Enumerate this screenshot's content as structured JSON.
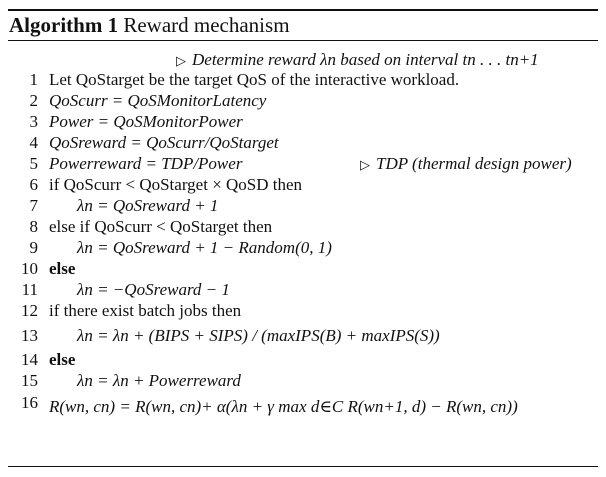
{
  "algorithm": {
    "label": "Algorithm 1",
    "title": "Reward mechanism",
    "header_comment": "Determine reward λn based on interval tn . . . tn+1",
    "lines": [
      {
        "num": "1",
        "text": "Let QoStarget be the target QoS of the interactive workload."
      },
      {
        "num": "2",
        "text": "QoScurr = QoSMonitorLatency"
      },
      {
        "num": "3",
        "text": "Power = QoSMonitorPower"
      },
      {
        "num": "4",
        "text": "QoSreward = QoScurr/QoStarget"
      },
      {
        "num": "5",
        "text": "Powerreward = TDP/Power",
        "comment": "TDP (thermal design power)"
      },
      {
        "num": "6",
        "text": "if QoScurr < QoStarget × QoSD then"
      },
      {
        "num": "7",
        "text": "λn = QoSreward + 1"
      },
      {
        "num": "8",
        "text": "else if QoScurr < QoStarget then"
      },
      {
        "num": "9",
        "text": "λn = QoSreward + 1 − Random(0, 1)"
      },
      {
        "num": "10",
        "text": "else"
      },
      {
        "num": "11",
        "text": "λn = −QoSreward − 1"
      },
      {
        "num": "12",
        "text": "if there exist batch jobs then"
      },
      {
        "num": "13",
        "text": "λn = λn + (BIPS + SIPS) / (maxIPS(B) + maxIPS(S))"
      },
      {
        "num": "14",
        "text": "else"
      },
      {
        "num": "15",
        "text": "λn = λn + Powerreward"
      },
      {
        "num": "16",
        "text": "R(wn, cn) = R(wn, cn)+ α(λn + γ max d∈C R(wn+1, d) − R(wn, cn))"
      }
    ]
  }
}
